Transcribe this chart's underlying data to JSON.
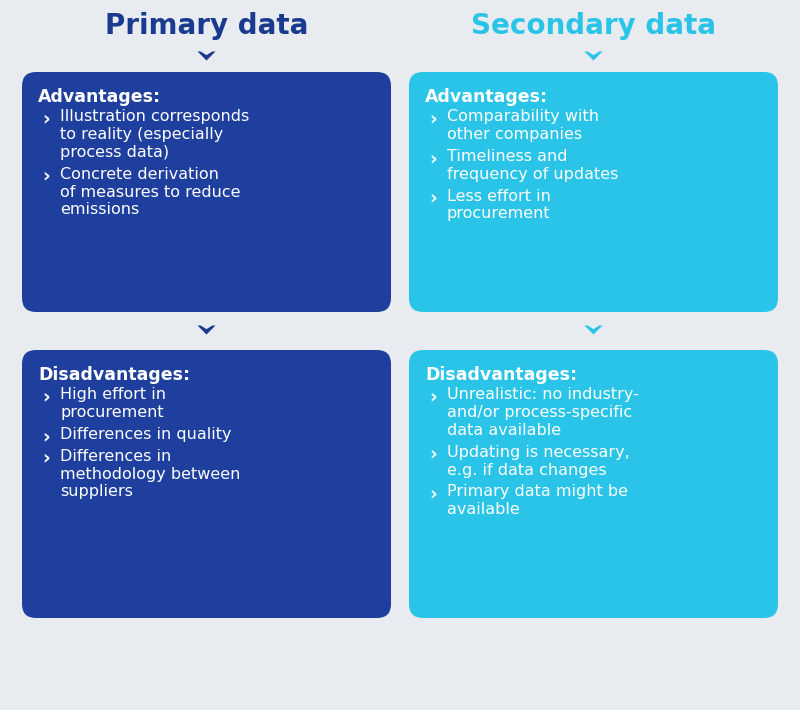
{
  "background_color": "#e8ecf0",
  "primary_title": "Primary data",
  "secondary_title": "Secondary data",
  "primary_title_color": "#1a3a8f",
  "secondary_title_color": "#29c4e8",
  "primary_box_color": "#1e3f9e",
  "secondary_box_color": "#29c4e8",
  "text_color": "#ffffff",
  "arrow_primary_color": "#1a3a8f",
  "arrow_secondary_color": "#29c4e8",
  "primary_adv_title": "Advantages:",
  "primary_adv_items": [
    [
      "Illustration corresponds",
      "to reality (especially",
      "process data)"
    ],
    [
      "Concrete derivation",
      "of measures to reduce",
      "emissions"
    ]
  ],
  "primary_dis_title": "Disadvantages:",
  "primary_dis_items": [
    [
      "High effort in",
      "procurement"
    ],
    [
      "Differences in quality"
    ],
    [
      "Differences in",
      "methodology between",
      "suppliers"
    ]
  ],
  "secondary_adv_title": "Advantages:",
  "secondary_adv_items": [
    [
      "Comparability with",
      "other companies"
    ],
    [
      "Timeliness and",
      "frequency of updates"
    ],
    [
      "Less effort in",
      "procurement"
    ]
  ],
  "secondary_dis_title": "Disadvantages:",
  "secondary_dis_items": [
    [
      "Unrealistic: no industry-",
      "and/or process-specific",
      "data available"
    ],
    [
      "Updating is necessary,",
      "e.g. if data changes"
    ],
    [
      "Primary data might be",
      "available"
    ]
  ],
  "title_fontsize": 20,
  "header_fontsize": 12.5,
  "body_fontsize": 11.5
}
